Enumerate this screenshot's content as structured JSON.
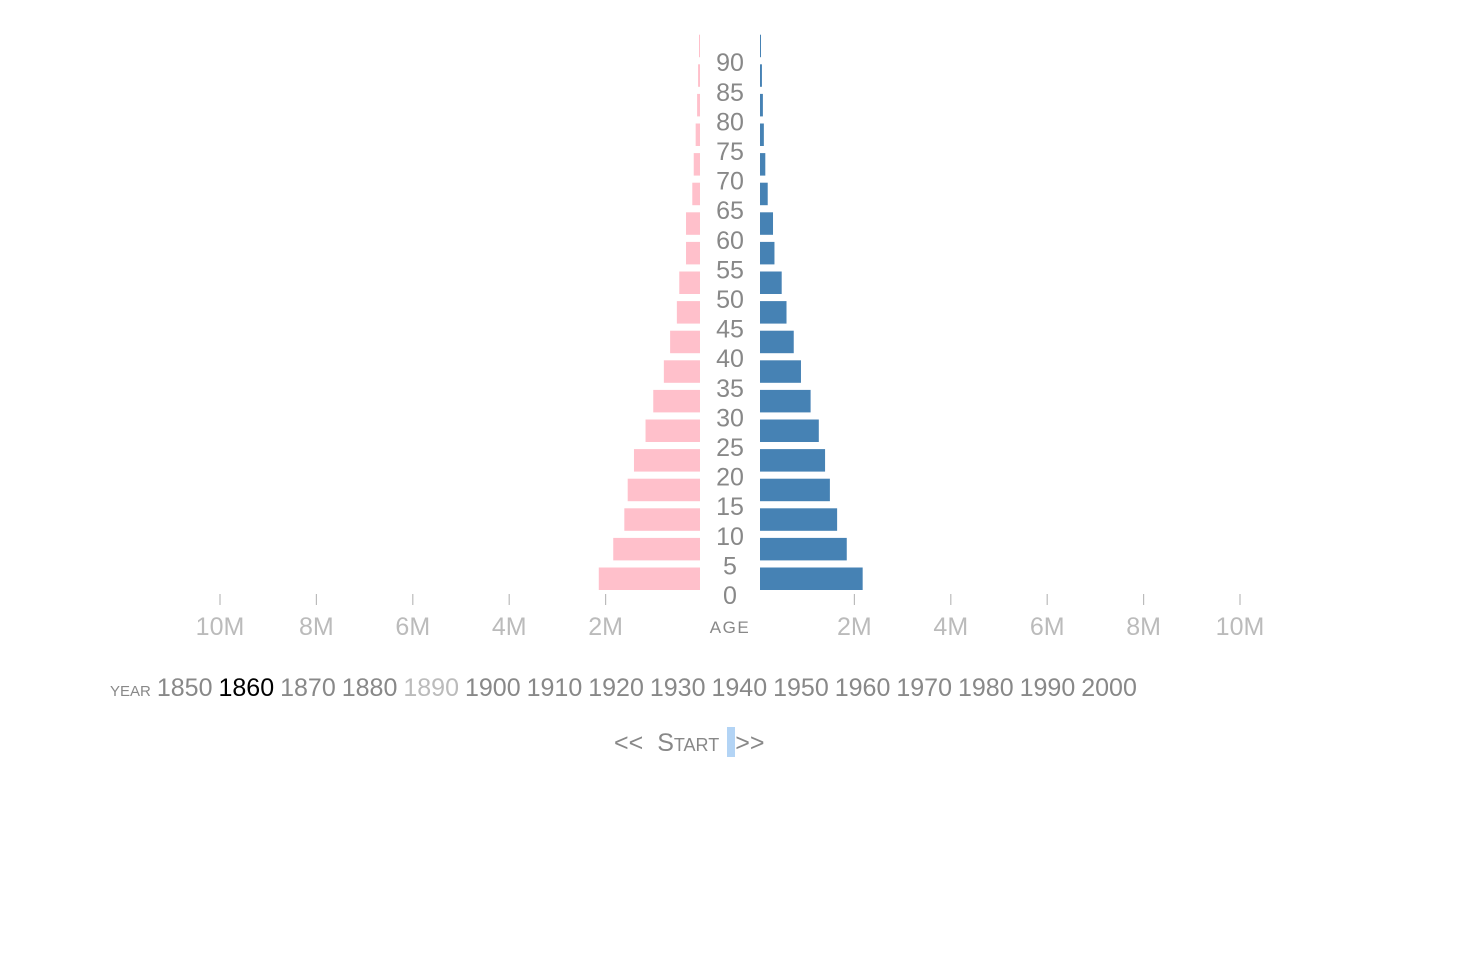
{
  "colors": {
    "female": "#ffc0cb",
    "male": "#4682b4"
  },
  "chart_data": {
    "type": "bar",
    "orientation": "horizontal",
    "layout": "population-pyramid",
    "year": "1860",
    "age_axis_label": "AGE",
    "age_groups": [
      0,
      5,
      10,
      15,
      20,
      25,
      30,
      35,
      40,
      45,
      50,
      55,
      60,
      65,
      70,
      75,
      80,
      85,
      90
    ],
    "series": [
      {
        "side": "left",
        "color": "#ffc0cb",
        "values": [
          2.1,
          1.8,
          1.57,
          1.5,
          1.37,
          1.13,
          0.97,
          0.75,
          0.62,
          0.48,
          0.43,
          0.29,
          0.29,
          0.16,
          0.13,
          0.09,
          0.06,
          0.04,
          0.02
        ]
      },
      {
        "side": "right",
        "color": "#4682b4",
        "values": [
          2.13,
          1.8,
          1.6,
          1.45,
          1.35,
          1.22,
          1.05,
          0.85,
          0.7,
          0.55,
          0.45,
          0.3,
          0.27,
          0.16,
          0.11,
          0.08,
          0.06,
          0.04,
          0.02
        ]
      }
    ],
    "xlim": [
      0,
      10
    ],
    "x_ticks": [
      2,
      4,
      6,
      8,
      10
    ],
    "x_tick_labels": [
      "2M",
      "4M",
      "6M",
      "8M",
      "10M"
    ],
    "grid": false
  },
  "years": {
    "title": "year",
    "items": [
      "1850",
      "1860",
      "1870",
      "1880",
      "1890",
      "1900",
      "1910",
      "1920",
      "1930",
      "1940",
      "1950",
      "1960",
      "1970",
      "1980",
      "1990",
      "2000"
    ],
    "current": "1860",
    "visited": "1890"
  },
  "controls": {
    "prev": "<<",
    "start": "Start",
    "next": ">>"
  }
}
